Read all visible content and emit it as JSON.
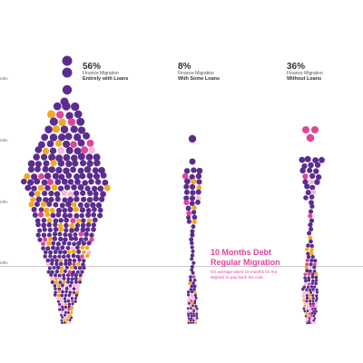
{
  "chart_data": {
    "type": "beeswarm",
    "y_axis_ticks": [
      "nths",
      "nths",
      "nths",
      "nths"
    ],
    "reference_line": "nths",
    "colors": {
      "purple": "#5b2d8e",
      "orange": "#f5a623",
      "pink": "#e0459a",
      "light_pink": "#f7b8d8",
      "reference_line": "#999999"
    },
    "groups": [
      {
        "percent": "56%",
        "line1": "Finance Migration",
        "line2": "Entirely with Loans",
        "share": 0.56,
        "dot_composition": {
          "purple": 0.8,
          "orange": 0.11,
          "pink": 0.06,
          "light_pink": 0.03
        }
      },
      {
        "percent": "8%",
        "line1": "Finance Migration",
        "line2": "With Some Loans",
        "share": 0.08,
        "dot_composition": {
          "purple": 0.83,
          "orange": 0.07,
          "pink": 0.06,
          "light_pink": 0.04
        }
      },
      {
        "percent": "36%",
        "line1": "Finance Migration",
        "line2": "Without Loans",
        "share": 0.36,
        "dot_composition": {
          "purple": 0.8,
          "orange": 0.08,
          "pink": 0.08,
          "light_pink": 0.04
        }
      }
    ],
    "annotation": {
      "title_line1": "10 Months Debt",
      "title_line2": "Regular Migration",
      "text_line1": "On average takes 10 months for the",
      "text_line2": "Migrant to pay back the cost."
    }
  }
}
